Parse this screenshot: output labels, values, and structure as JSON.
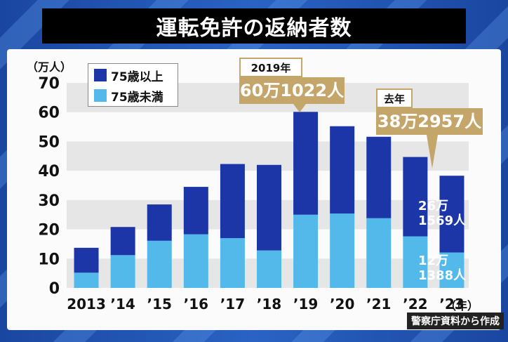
{
  "title": "運転免許の返納者数",
  "source": "警察庁資料から作成",
  "colors": {
    "over75": "#1c36a8",
    "under75": "#52b9ea",
    "callout": "#c4a56a"
  },
  "legend": {
    "over75": "75歳以上",
    "under75": "75歳未満"
  },
  "callouts": {
    "peak": {
      "year": "2019年",
      "value": "60万1022人"
    },
    "last": {
      "year": "去年",
      "value": "38万2957人"
    }
  },
  "bar_labels": {
    "over75_2023": [
      "26万",
      "1569人"
    ],
    "under75_2023": [
      "12万",
      "1388人"
    ]
  },
  "chart_data": {
    "type": "bar",
    "stacked": true,
    "title": "運転免許の返納者数",
    "ylabel": "（万人）",
    "xlabel": "（年）",
    "categories": [
      "2013",
      "’14",
      "’15",
      "’16",
      "’17",
      "’18",
      "’19",
      "’20",
      "’21",
      "’22",
      "’23"
    ],
    "ylim": [
      0,
      70
    ],
    "yticks": [
      0,
      10,
      20,
      30,
      40,
      50,
      60,
      70
    ],
    "series": [
      {
        "name": "75歳未満",
        "values": [
          5.2,
          11.2,
          16.1,
          18.3,
          17.0,
          12.8,
          25.0,
          25.4,
          23.8,
          17.6,
          12.1
        ]
      },
      {
        "name": "75歳以上",
        "values": [
          8.5,
          9.6,
          12.4,
          16.2,
          25.3,
          29.2,
          35.1,
          29.8,
          27.8,
          27.1,
          26.2
        ]
      }
    ]
  }
}
